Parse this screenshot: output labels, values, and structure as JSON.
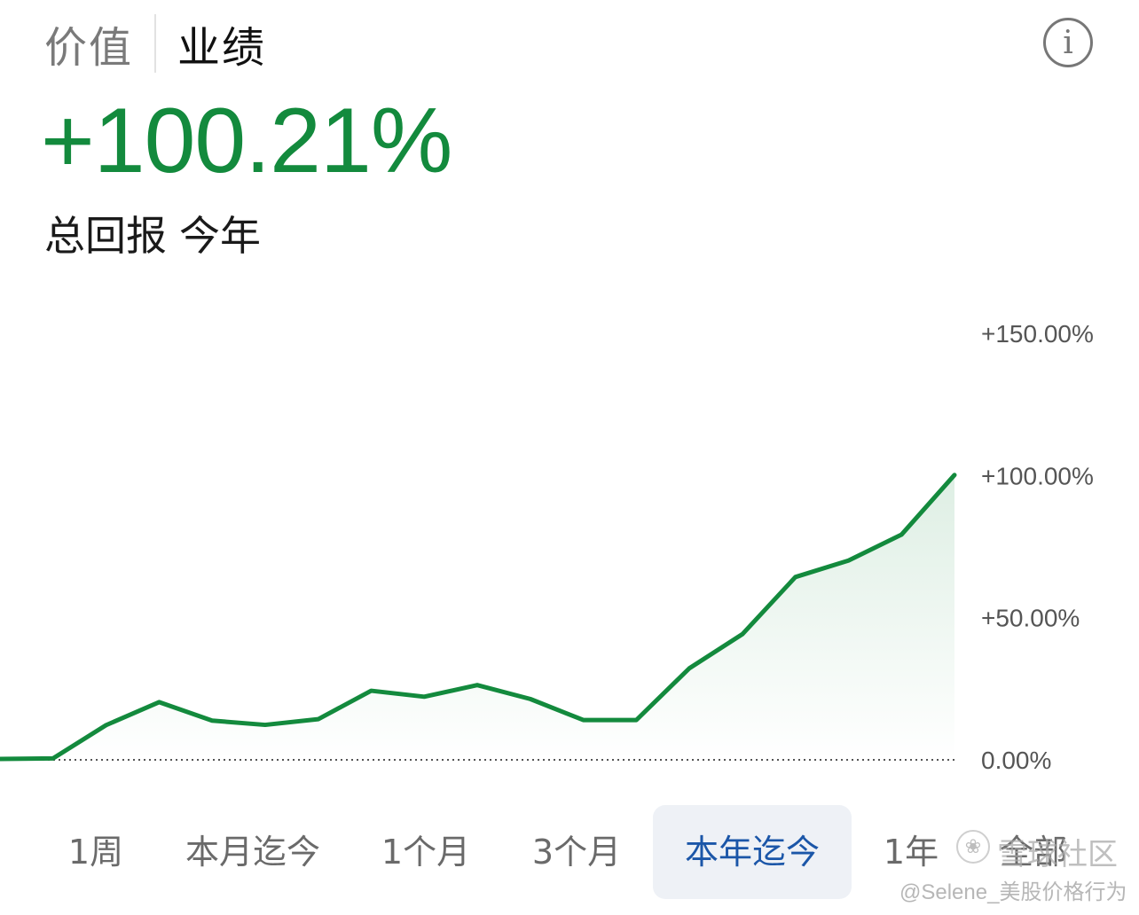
{
  "tabs": {
    "value": "价值",
    "performance": "业绩"
  },
  "info_icon": {
    "glyph": "i",
    "name": "info-icon"
  },
  "summary": {
    "value": "+100.21%",
    "label": "总回报",
    "period": "今年"
  },
  "chart_data": {
    "type": "area",
    "ylim": [
      0,
      150
    ],
    "yticks": [
      "+150.00%",
      "+100.00%",
      "+50.00%",
      "0.00%"
    ],
    "ytick_values": [
      150,
      100,
      50,
      0
    ],
    "baseline": 0,
    "values": [
      0.3,
      0.5,
      12.2,
      20.3,
      13.8,
      12.3,
      14.3,
      24.3,
      22.2,
      26.3,
      21.4,
      14.0,
      14.0,
      32.2,
      44.2,
      64.3,
      70.1,
      79.2,
      100.2
    ],
    "line_color": "#138a3d",
    "fill_color": "#138a3d",
    "grid": false
  },
  "ranges": {
    "items": [
      {
        "label": "1周"
      },
      {
        "label": "本月迄今"
      },
      {
        "label": "1个月"
      },
      {
        "label": "3个月"
      },
      {
        "label": "本年迄今"
      },
      {
        "label": "1年"
      },
      {
        "label": "全部"
      }
    ],
    "active_index": 4,
    "active_color": "#1b56a8"
  },
  "watermark": {
    "line1": "雪球社区",
    "line2": "@Selene_美股价格行为"
  }
}
